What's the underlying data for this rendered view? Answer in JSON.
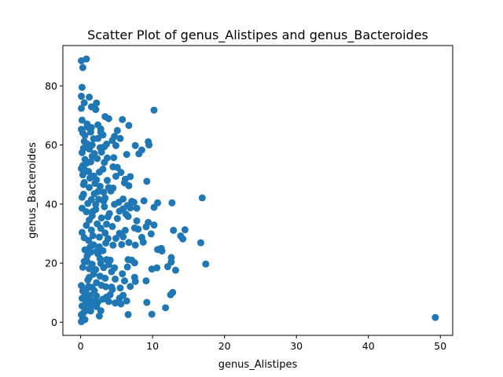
{
  "chart_data": {
    "type": "scatter",
    "title": "Scatter Plot of genus_Alistipes and genus_Bacteroides",
    "xlabel": "genus_Alistipes",
    "ylabel": "genus_Bacteroides",
    "xlim": [
      -2.47,
      51.72
    ],
    "ylim": [
      -4.45,
      93.65
    ],
    "xticks": [
      0,
      10,
      20,
      30,
      40,
      50
    ],
    "yticks": [
      0,
      20,
      40,
      60,
      80
    ],
    "grid": false,
    "marker_color": "#1f77b4",
    "points": [
      [
        0.1,
        88.5
      ],
      [
        0.3,
        86.2
      ],
      [
        0.8,
        89.1
      ],
      [
        0.2,
        79.5
      ],
      [
        0.1,
        76.5
      ],
      [
        1.2,
        76.2
      ],
      [
        0.5,
        74.3
      ],
      [
        2.2,
        74.2
      ],
      [
        0.1,
        72.4
      ],
      [
        1.5,
        72.9
      ],
      [
        2.1,
        72.0
      ],
      [
        3.4,
        69.6
      ],
      [
        3.9,
        68.9
      ],
      [
        5.8,
        68.6
      ],
      [
        6.7,
        66.6
      ],
      [
        10.2,
        71.8
      ],
      [
        0.2,
        68.4
      ],
      [
        0.9,
        67.1
      ],
      [
        2.4,
        66.8
      ],
      [
        1.5,
        65.9
      ],
      [
        2.8,
        65.4
      ],
      [
        0.1,
        65.3
      ],
      [
        0.3,
        64.1
      ],
      [
        0.6,
        63.2
      ],
      [
        1.8,
        62.1
      ],
      [
        3.1,
        63.4
      ],
      [
        4.7,
        62.9
      ],
      [
        5.5,
        62.2
      ],
      [
        4.4,
        61.5
      ],
      [
        3.6,
        60.3
      ],
      [
        2.7,
        59.1
      ],
      [
        1.2,
        58.6
      ],
      [
        0.4,
        58.9
      ],
      [
        0.2,
        57.4
      ],
      [
        1.6,
        56.2
      ],
      [
        2.3,
        55.4
      ],
      [
        0.6,
        55.1
      ],
      [
        1.4,
        54.3
      ],
      [
        3.3,
        54.1
      ],
      [
        4.6,
        55.7
      ],
      [
        7.6,
        59.8
      ],
      [
        8.5,
        58.3
      ],
      [
        9.4,
        61.1
      ],
      [
        9.5,
        60.0
      ],
      [
        8.1,
        57.0
      ],
      [
        6.4,
        56.8
      ],
      [
        4.5,
        52.6
      ],
      [
        5.1,
        52.4
      ],
      [
        0.1,
        52.0
      ],
      [
        0.6,
        51.5
      ],
      [
        1.1,
        51.0
      ],
      [
        2.6,
        50.8
      ],
      [
        3.1,
        51.8
      ],
      [
        0.3,
        49.9
      ],
      [
        1.8,
        49.5
      ],
      [
        2.2,
        48.2
      ],
      [
        3.7,
        48.0
      ],
      [
        4.9,
        49.4
      ],
      [
        6.2,
        48.4
      ],
      [
        6.9,
        49.3
      ],
      [
        6.1,
        47.2
      ],
      [
        9.2,
        47.7
      ],
      [
        0.4,
        46.6
      ],
      [
        1.2,
        45.6
      ],
      [
        2.7,
        46.0
      ],
      [
        4.2,
        44.4
      ],
      [
        4.5,
        45.4
      ],
      [
        3.2,
        44.0
      ],
      [
        1.9,
        43.5
      ],
      [
        0.4,
        43.3
      ],
      [
        0.2,
        42.3
      ],
      [
        1.5,
        41.5
      ],
      [
        2.5,
        41.6
      ],
      [
        3.4,
        42.0
      ],
      [
        5.3,
        40.6
      ],
      [
        6.5,
        39.5
      ],
      [
        7.1,
        40.9
      ],
      [
        8.8,
        41.1
      ],
      [
        10.7,
        40.4
      ],
      [
        12.7,
        40.4
      ],
      [
        10.2,
        38.9
      ],
      [
        16.9,
        42.1
      ],
      [
        7.8,
        38.6
      ],
      [
        5.9,
        38.4
      ],
      [
        4.7,
        39.9
      ],
      [
        3.3,
        39.1
      ],
      [
        2.1,
        38.2
      ],
      [
        0.2,
        38.6
      ],
      [
        0.8,
        37.4
      ],
      [
        1.6,
        36.0
      ],
      [
        2.9,
        35.3
      ],
      [
        3.8,
        35.7
      ],
      [
        5.1,
        35.1
      ],
      [
        6.6,
        35.8
      ],
      [
        7.8,
        34.3
      ],
      [
        9.4,
        33.8
      ],
      [
        10.2,
        32.9
      ],
      [
        12.9,
        31.1
      ],
      [
        14.5,
        31.3
      ],
      [
        13.9,
        29.2
      ],
      [
        14.2,
        28.2
      ],
      [
        16.7,
        26.9
      ],
      [
        11.2,
        25.0
      ],
      [
        10.7,
        24.6
      ],
      [
        11.3,
        24.1
      ],
      [
        9.8,
        29.9
      ],
      [
        8.5,
        28.7
      ],
      [
        7.5,
        31.9
      ],
      [
        6.2,
        31.1
      ],
      [
        5.4,
        30.1
      ],
      [
        4.9,
        28.4
      ],
      [
        4.5,
        26.1
      ],
      [
        5.7,
        26.3
      ],
      [
        6.7,
        27.0
      ],
      [
        8.7,
        27.1
      ],
      [
        7.6,
        26.1
      ],
      [
        3.5,
        26.8
      ],
      [
        2.6,
        25.5
      ],
      [
        1.8,
        26.2
      ],
      [
        1.1,
        27.7
      ],
      [
        0.5,
        28.6
      ],
      [
        0.2,
        30.4
      ],
      [
        1.5,
        31.2
      ],
      [
        2.8,
        31.8
      ],
      [
        3.4,
        30.2
      ],
      [
        0.6,
        24.5
      ],
      [
        1.4,
        23.7
      ],
      [
        2.2,
        24.0
      ],
      [
        3.1,
        24.2
      ],
      [
        0.9,
        22.4
      ],
      [
        2.7,
        21.5
      ],
      [
        3.6,
        21.2
      ],
      [
        4.1,
        21.0
      ],
      [
        6.6,
        21.2
      ],
      [
        7.1,
        21.0
      ],
      [
        7.5,
        20.1
      ],
      [
        12.6,
        21.9
      ],
      [
        12.1,
        18.8
      ],
      [
        12.6,
        20.4
      ],
      [
        13.2,
        17.6
      ],
      [
        17.4,
        19.7
      ],
      [
        10.6,
        18.4
      ],
      [
        9.9,
        18.0
      ],
      [
        6.5,
        18.7
      ],
      [
        5.8,
        16.4
      ],
      [
        4.7,
        18.4
      ],
      [
        4.3,
        17.1
      ],
      [
        3.2,
        18.5
      ],
      [
        2.1,
        17.8
      ],
      [
        1.2,
        18.1
      ],
      [
        0.3,
        18.6
      ],
      [
        0.5,
        20.6
      ],
      [
        1.8,
        16.3
      ],
      [
        1.2,
        15.2
      ],
      [
        2.7,
        15.6
      ],
      [
        3.4,
        14.9
      ],
      [
        4.8,
        14.6
      ],
      [
        6.1,
        14.0
      ],
      [
        7.5,
        15.2
      ],
      [
        7.6,
        13.8
      ],
      [
        9.1,
        14.0
      ],
      [
        0.1,
        12.4
      ],
      [
        1.1,
        12.1
      ],
      [
        1.6,
        11.8
      ],
      [
        2.9,
        12.5
      ],
      [
        3.5,
        12.0
      ],
      [
        4.3,
        11.9
      ],
      [
        4.4,
        11.1
      ],
      [
        5.5,
        11.6
      ],
      [
        6.9,
        12.1
      ],
      [
        0.3,
        10.6
      ],
      [
        0.6,
        9.6
      ],
      [
        1.3,
        9.1
      ],
      [
        2.2,
        8.9
      ],
      [
        3.6,
        8.5
      ],
      [
        4.1,
        9.3
      ],
      [
        5.4,
        8.1
      ],
      [
        12.5,
        9.3
      ],
      [
        12.8,
        10.1
      ],
      [
        1.0,
        7.6
      ],
      [
        1.8,
        7.1
      ],
      [
        2.4,
        6.8
      ],
      [
        3.1,
        7.8
      ],
      [
        3.9,
        7.0
      ],
      [
        4.8,
        6.5
      ],
      [
        5.6,
        6.2
      ],
      [
        6.4,
        7.2
      ],
      [
        9.2,
        6.7
      ],
      [
        11.8,
        4.9
      ],
      [
        0.2,
        5.5
      ],
      [
        0.9,
        4.1
      ],
      [
        1.4,
        3.8
      ],
      [
        2.8,
        3.9
      ],
      [
        6.6,
        2.6
      ],
      [
        9.9,
        2.7
      ],
      [
        0.1,
        2.5
      ],
      [
        0.3,
        1.4
      ],
      [
        0.6,
        0.9
      ],
      [
        0.1,
        0.2
      ],
      [
        0.4,
        3.2
      ],
      [
        1.5,
        5.6
      ],
      [
        2.6,
        2.1
      ],
      [
        49.3,
        1.6
      ],
      [
        0.5,
        61.2
      ],
      [
        0.9,
        60.4
      ],
      [
        1.6,
        60.0
      ],
      [
        2.4,
        62.2
      ],
      [
        0.3,
        53.0
      ],
      [
        0.8,
        53.8
      ],
      [
        2.9,
        57.6
      ],
      [
        3.7,
        55.6
      ],
      [
        1.3,
        48.8
      ],
      [
        2.0,
        47.0
      ],
      [
        0.5,
        47.3
      ],
      [
        2.4,
        44.2
      ],
      [
        3.9,
        45.6
      ],
      [
        1.0,
        40.2
      ],
      [
        2.1,
        39.8
      ],
      [
        4.0,
        36.8
      ],
      [
        5.4,
        37.6
      ],
      [
        6.3,
        36.6
      ],
      [
        1.2,
        34.6
      ],
      [
        2.3,
        33.3
      ],
      [
        3.6,
        33.2
      ],
      [
        4.4,
        32.4
      ],
      [
        0.8,
        32.8
      ],
      [
        1.7,
        29.3
      ],
      [
        2.6,
        28.8
      ],
      [
        3.8,
        28.3
      ],
      [
        5.9,
        28.9
      ],
      [
        1.3,
        25.4
      ],
      [
        2.4,
        23.1
      ],
      [
        0.9,
        20.5
      ],
      [
        1.6,
        19.6
      ],
      [
        2.8,
        19.9
      ],
      [
        3.9,
        19.5
      ],
      [
        1.0,
        14.3
      ],
      [
        2.2,
        13.4
      ],
      [
        0.8,
        11.1
      ],
      [
        1.9,
        10.7
      ],
      [
        5.9,
        9.1
      ],
      [
        0.2,
        8.1
      ],
      [
        0.7,
        6.3
      ],
      [
        2.2,
        5.3
      ],
      [
        0.9,
        66.1
      ],
      [
        1.4,
        64.4
      ],
      [
        2.8,
        64.3
      ],
      [
        5.1,
        64.9
      ],
      [
        3.3,
        59.4
      ],
      [
        1.9,
        57.1
      ],
      [
        4.9,
        59.8
      ],
      [
        5.6,
        50.7
      ],
      [
        6.7,
        46.2
      ],
      [
        7.4,
        40.6
      ],
      [
        5.9,
        41.7
      ],
      [
        6.9,
        38.7
      ],
      [
        8.0,
        31.5
      ],
      [
        9.1,
        32.3
      ],
      [
        3.2,
        41.0
      ],
      [
        1.7,
        37.5
      ]
    ]
  }
}
